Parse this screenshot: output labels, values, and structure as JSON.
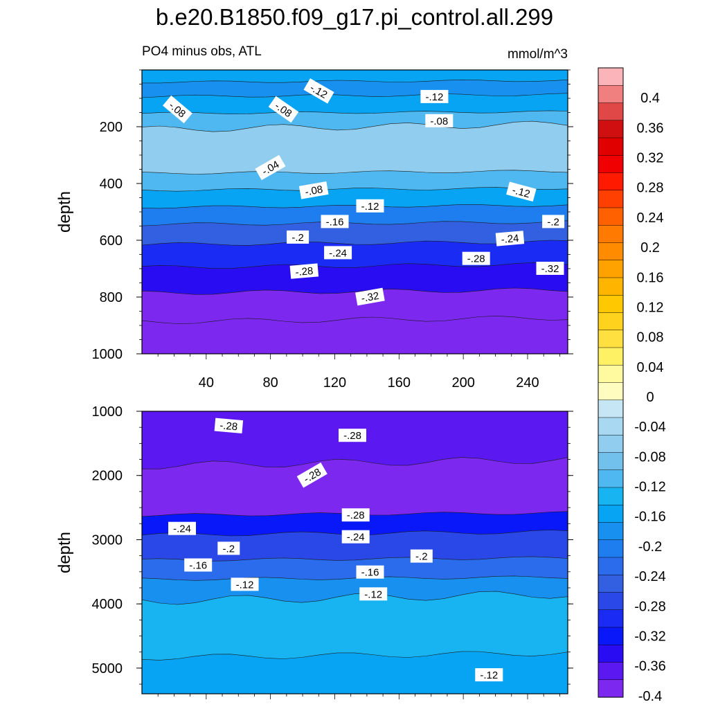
{
  "title": "b.e20.B1850.f09_g17.pi_control.all.299",
  "subtitle_left": "PO4 minus obs, ATL",
  "subtitle_right": "mmol/m^3",
  "chart_data": [
    {
      "type": "contour",
      "panel": "upper",
      "ylabel": "depth",
      "xlabel": "",
      "xlim": [
        0,
        265
      ],
      "ylim": [
        1000,
        0
      ],
      "x_ticks": [
        "40",
        "80",
        "120",
        "160",
        "200",
        "240"
      ],
      "y_ticks": [
        "200",
        "400",
        "600",
        "800",
        "1000"
      ],
      "bands": [
        {
          "depth_top": 0,
          "depth_bottom": 40,
          "value": -0.1
        },
        {
          "depth_top": 40,
          "depth_bottom": 90,
          "value": -0.13
        },
        {
          "depth_top": 90,
          "depth_bottom": 150,
          "value": -0.1
        },
        {
          "depth_top": 150,
          "depth_bottom": 200,
          "value": -0.07
        },
        {
          "depth_top": 200,
          "depth_bottom": 360,
          "value": -0.03
        },
        {
          "depth_top": 360,
          "depth_bottom": 420,
          "value": -0.07
        },
        {
          "depth_top": 420,
          "depth_bottom": 480,
          "value": -0.11
        },
        {
          "depth_top": 480,
          "depth_bottom": 540,
          "value": -0.15
        },
        {
          "depth_top": 540,
          "depth_bottom": 610,
          "value": -0.19
        },
        {
          "depth_top": 610,
          "depth_bottom": 690,
          "value": -0.23
        },
        {
          "depth_top": 690,
          "depth_bottom": 780,
          "value": -0.27
        },
        {
          "depth_top": 780,
          "depth_bottom": 880,
          "value": -0.31
        },
        {
          "depth_top": 880,
          "depth_bottom": 1000,
          "value": -0.34
        }
      ],
      "contour_labels": [
        {
          "text": "-.12",
          "x": 110,
          "depth": 75,
          "angle": 30
        },
        {
          "text": "-.12",
          "x": 182,
          "depth": 95,
          "angle": 0
        },
        {
          "text": "-.08",
          "x": 22,
          "depth": 140,
          "angle": 40
        },
        {
          "text": "-.08",
          "x": 88,
          "depth": 140,
          "angle": 35
        },
        {
          "text": "-.08",
          "x": 185,
          "depth": 180,
          "angle": 0
        },
        {
          "text": "-.04",
          "x": 80,
          "depth": 345,
          "angle": -30
        },
        {
          "text": "-.08",
          "x": 107,
          "depth": 425,
          "angle": -10
        },
        {
          "text": "-.12",
          "x": 236,
          "depth": 430,
          "angle": 15
        },
        {
          "text": "-.12",
          "x": 142,
          "depth": 480,
          "angle": 0
        },
        {
          "text": "-.16",
          "x": 120,
          "depth": 535,
          "angle": 0
        },
        {
          "text": "-.2",
          "x": 256,
          "depth": 535,
          "angle": 0
        },
        {
          "text": "-.2",
          "x": 97,
          "depth": 590,
          "angle": 0
        },
        {
          "text": "-.24",
          "x": 229,
          "depth": 595,
          "angle": -5
        },
        {
          "text": "-.24",
          "x": 122,
          "depth": 645,
          "angle": 0
        },
        {
          "text": "-.28",
          "x": 208,
          "depth": 665,
          "angle": 0
        },
        {
          "text": "-.28",
          "x": 101,
          "depth": 710,
          "angle": -5
        },
        {
          "text": "-.32",
          "x": 254,
          "depth": 700,
          "angle": 0
        },
        {
          "text": "-.32",
          "x": 142,
          "depth": 800,
          "angle": -10
        }
      ]
    },
    {
      "type": "contour",
      "panel": "lower",
      "ylabel": "depth",
      "xlabel": "",
      "xlim": [
        0,
        265
      ],
      "ylim": [
        5400,
        1000
      ],
      "y_ticks": [
        "1000",
        "2000",
        "3000",
        "4000",
        "5000"
      ],
      "bands": [
        {
          "depth_top": 1000,
          "depth_bottom": 1800,
          "value": -0.29
        },
        {
          "depth_top": 1800,
          "depth_bottom": 2600,
          "value": -0.31
        },
        {
          "depth_top": 2600,
          "depth_bottom": 2900,
          "value": -0.25
        },
        {
          "depth_top": 2900,
          "depth_bottom": 3300,
          "value": -0.21
        },
        {
          "depth_top": 3300,
          "depth_bottom": 3600,
          "value": -0.17
        },
        {
          "depth_top": 3600,
          "depth_bottom": 3900,
          "value": -0.13
        },
        {
          "depth_top": 3900,
          "depth_bottom": 4800,
          "value": -0.09
        },
        {
          "depth_top": 4800,
          "depth_bottom": 5400,
          "value": -0.11
        }
      ],
      "contour_labels": [
        {
          "text": "-.28",
          "x": 54,
          "depth": 1230,
          "angle": 5
        },
        {
          "text": "-.28",
          "x": 131,
          "depth": 1380,
          "angle": 0
        },
        {
          "text": "-.28",
          "x": 106,
          "depth": 2000,
          "angle": -30
        },
        {
          "text": "-.28",
          "x": 133,
          "depth": 2620,
          "angle": 0
        },
        {
          "text": "-.24",
          "x": 25,
          "depth": 2830,
          "angle": 0
        },
        {
          "text": "-.24",
          "x": 133,
          "depth": 2960,
          "angle": 0
        },
        {
          "text": "-.2",
          "x": 54,
          "depth": 3140,
          "angle": 0
        },
        {
          "text": "-.2",
          "x": 174,
          "depth": 3260,
          "angle": 0
        },
        {
          "text": "-.16",
          "x": 35,
          "depth": 3400,
          "angle": 0
        },
        {
          "text": "-.16",
          "x": 142,
          "depth": 3510,
          "angle": 0
        },
        {
          "text": "-.12",
          "x": 64,
          "depth": 3700,
          "angle": 0
        },
        {
          "text": "-.12",
          "x": 144,
          "depth": 3850,
          "angle": 0
        },
        {
          "text": "-.12",
          "x": 216,
          "depth": 5110,
          "angle": 0
        }
      ]
    }
  ],
  "colorbar": {
    "title": "",
    "labels": [
      "0.4",
      "0.36",
      "0.32",
      "0.28",
      "0.24",
      "0.2",
      "0.16",
      "0.12",
      "0.08",
      "0.04",
      "0",
      "-0.04",
      "-0.08",
      "-0.12",
      "-0.16",
      "-0.2",
      "-0.24",
      "-0.28",
      "-0.32",
      "-0.36",
      "-0.4"
    ],
    "colors": [
      "#fbb4b9",
      "#f08080",
      "#e04848",
      "#d01010",
      "#e00000",
      "#f00000",
      "#ff1a00",
      "#ff4000",
      "#ff6000",
      "#ff7a00",
      "#ff8c00",
      "#ffa200",
      "#ffb400",
      "#ffc800",
      "#ffd21e",
      "#ffe040",
      "#fff064",
      "#fffaa0",
      "#fffcc0",
      "#c6e6f6",
      "#a8d8f2",
      "#90cdee",
      "#72c1ec",
      "#50b8f0",
      "#18b4f2",
      "#08a4f4",
      "#1890f0",
      "#1e7ef0",
      "#2a6cec",
      "#3260e0",
      "#2a48e8",
      "#1a2cf4",
      "#0818f8",
      "#2a0cf2",
      "#5c18f0",
      "#7c28ee"
    ]
  }
}
